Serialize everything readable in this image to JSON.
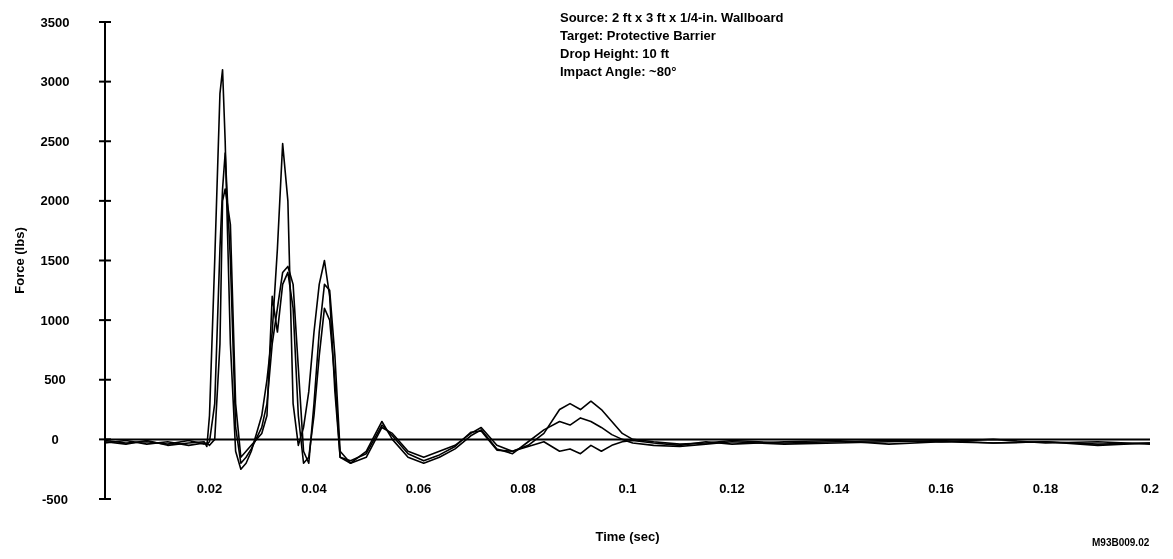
{
  "chart_data": {
    "type": "line",
    "xlabel": "Time (sec)",
    "ylabel": "Force (lbs)",
    "annotations": [
      "Source: 2 ft x 3 ft x 1/4-in. Wallboard",
      "Target: Protective Barrier",
      "Drop Height: 10 ft",
      "Impact Angle: ~80°",
      "M93B009.02"
    ],
    "xlim": [
      0,
      0.2
    ],
    "xticks": [
      0.02,
      0.04,
      0.06,
      0.08,
      0.1,
      0.12,
      0.14,
      0.16,
      0.18,
      0.2
    ],
    "ylim": [
      -500,
      3500
    ],
    "yticks": [
      -500,
      0,
      500,
      1000,
      1500,
      2000,
      2500,
      3000,
      3500
    ],
    "marker": "none",
    "line_style": "solid",
    "series": [
      {
        "color": "#000000",
        "x": [
          0,
          0.004,
          0.008,
          0.012,
          0.016,
          0.019,
          0.0195,
          0.02,
          0.021,
          0.022,
          0.0225,
          0.023,
          0.024,
          0.025,
          0.026,
          0.027,
          0.028,
          0.03,
          0.031,
          0.032,
          0.033,
          0.034,
          0.035,
          0.036,
          0.037,
          0.038,
          0.039,
          0.04,
          0.041,
          0.042,
          0.043,
          0.044,
          0.045,
          0.047,
          0.05,
          0.053,
          0.055,
          0.058,
          0.061,
          0.064,
          0.067,
          0.07,
          0.072,
          0.075,
          0.078,
          0.081,
          0.084,
          0.087,
          0.089,
          0.091,
          0.093,
          0.095,
          0.097,
          0.099,
          0.101,
          0.105,
          0.11,
          0.115,
          0.12,
          0.13,
          0.14,
          0.15,
          0.16,
          0.17,
          0.18,
          0.19,
          0.2
        ],
        "values": [
          -20,
          -40,
          -10,
          -50,
          -30,
          -20,
          -60,
          200,
          1500,
          2900,
          3100,
          2500,
          800,
          -100,
          -250,
          -200,
          -100,
          200,
          500,
          900,
          1600,
          2480,
          2000,
          300,
          -50,
          100,
          400,
          900,
          1300,
          1500,
          1200,
          400,
          -150,
          -200,
          -150,
          100,
          50,
          -100,
          -150,
          -100,
          -50,
          50,
          100,
          -50,
          -100,
          -50,
          50,
          250,
          300,
          250,
          320,
          250,
          150,
          50,
          0,
          -20,
          -40,
          -30,
          -10,
          -30,
          -20,
          -10,
          -20,
          0,
          -30,
          -20,
          -40
        ]
      },
      {
        "color": "#000000",
        "x": [
          0,
          0.004,
          0.008,
          0.012,
          0.016,
          0.019,
          0.0195,
          0.02,
          0.021,
          0.022,
          0.0225,
          0.023,
          0.024,
          0.025,
          0.026,
          0.027,
          0.028,
          0.03,
          0.031,
          0.032,
          0.033,
          0.034,
          0.035,
          0.036,
          0.037,
          0.038,
          0.039,
          0.04,
          0.041,
          0.042,
          0.043,
          0.044,
          0.045,
          0.047,
          0.05,
          0.053,
          0.055,
          0.058,
          0.061,
          0.064,
          0.067,
          0.07,
          0.072,
          0.075,
          0.078,
          0.081,
          0.084,
          0.087,
          0.089,
          0.091,
          0.093,
          0.095,
          0.097,
          0.099,
          0.101,
          0.105,
          0.11,
          0.115,
          0.12,
          0.13,
          0.14,
          0.15,
          0.16,
          0.17,
          0.18,
          0.19,
          0.2
        ],
        "values": [
          -30,
          -10,
          -40,
          -20,
          -50,
          -30,
          -40,
          -20,
          300,
          1600,
          2100,
          2400,
          1500,
          100,
          -200,
          -150,
          -80,
          100,
          300,
          800,
          1100,
          1400,
          1450,
          1300,
          600,
          -100,
          -200,
          300,
          900,
          1300,
          1250,
          700,
          -100,
          -200,
          -100,
          150,
          0,
          -150,
          -200,
          -150,
          -80,
          30,
          80,
          -80,
          -120,
          -20,
          80,
          150,
          120,
          180,
          150,
          100,
          40,
          0,
          -30,
          -50,
          -60,
          -40,
          -20,
          -40,
          -30,
          -20,
          -10,
          -30,
          -20,
          -40,
          -30
        ]
      },
      {
        "color": "#000000",
        "x": [
          0,
          0.004,
          0.008,
          0.012,
          0.016,
          0.019,
          0.0195,
          0.02,
          0.021,
          0.022,
          0.0225,
          0.023,
          0.024,
          0.025,
          0.026,
          0.027,
          0.028,
          0.03,
          0.031,
          0.032,
          0.033,
          0.034,
          0.035,
          0.036,
          0.037,
          0.038,
          0.039,
          0.04,
          0.041,
          0.042,
          0.043,
          0.044,
          0.045,
          0.047,
          0.05,
          0.053,
          0.055,
          0.058,
          0.061,
          0.064,
          0.067,
          0.07,
          0.072,
          0.075,
          0.078,
          0.081,
          0.084,
          0.087,
          0.089,
          0.091,
          0.093,
          0.095,
          0.097,
          0.099,
          0.101,
          0.105,
          0.11,
          0.115,
          0.12,
          0.13,
          0.14,
          0.15,
          0.16,
          0.17,
          0.18,
          0.19,
          0.2
        ],
        "values": [
          -10,
          -30,
          -20,
          -40,
          -10,
          -40,
          -30,
          -50,
          0,
          800,
          2000,
          2100,
          1800,
          300,
          -150,
          -100,
          -50,
          50,
          200,
          1200,
          900,
          1300,
          1400,
          1100,
          200,
          -200,
          -150,
          200,
          700,
          1100,
          1000,
          500,
          -150,
          -180,
          -120,
          120,
          30,
          -120,
          -180,
          -130,
          -60,
          60,
          70,
          -90,
          -100,
          -60,
          -20,
          -100,
          -80,
          -120,
          -50,
          -100,
          -50,
          -20,
          -10,
          -30,
          -50,
          -20,
          -40,
          -20,
          -10,
          -40,
          -20,
          -30,
          -20,
          -50,
          -30
        ]
      }
    ]
  }
}
